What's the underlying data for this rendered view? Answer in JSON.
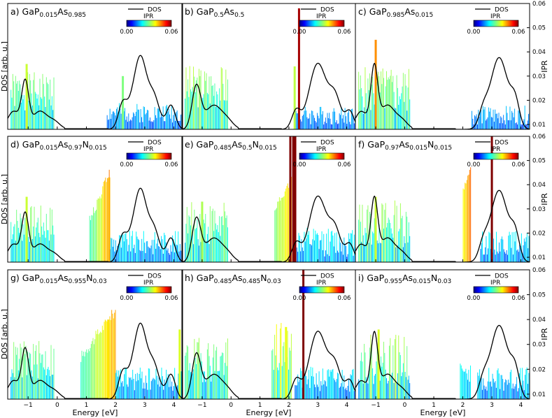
{
  "figure": {
    "ylabel_left": "DOS [arb. u.]",
    "ylabel_right": "IPR",
    "xlabel": "Energy [eV]",
    "legend_dos": "DOS",
    "legend_ipr": "IPR",
    "colorbar_min": "0.00",
    "colorbar_max": "0.06",
    "x_ticks": [
      "−1",
      "0",
      "1",
      "2",
      "3",
      "4"
    ],
    "ipr_ticks": [
      "0.01",
      "0.02",
      "0.03",
      "0.04",
      "0.05",
      "0.06"
    ]
  },
  "chart_data": [
    {
      "type": "bar",
      "panel": "a)",
      "title_base": "GaP",
      "composition": [
        {
          "sub": "0.015",
          "el": "As"
        },
        {
          "sub": "0.985",
          "el": ""
        }
      ],
      "x_range": [
        -1.7,
        4.3
      ],
      "ipr_range": [
        0.008,
        0.06
      ],
      "dos_peaks": [
        [
          -1.1,
          0.38,
          0.12
        ],
        [
          -1.5,
          0.15,
          0.2
        ],
        [
          -0.6,
          0.15,
          0.25
        ],
        [
          -0.1,
          0.06,
          0.2
        ],
        [
          2.25,
          0.22,
          0.15
        ],
        [
          2.85,
          0.58,
          0.2
        ],
        [
          3.3,
          0.28,
          0.2
        ],
        [
          3.9,
          0.2,
          0.15
        ],
        [
          2.55,
          0.12,
          0.15
        ]
      ],
      "bands": [
        {
          "from": -1.6,
          "to": -0.1,
          "base": 0.022,
          "amp": 0.008,
          "seed": 1
        },
        {
          "from": 1.7,
          "to": 4.3,
          "base": 0.014,
          "amp": 0.004,
          "seed": 2
        }
      ],
      "special": [
        [
          -1.05,
          0.035
        ],
        [
          2.25,
          0.03
        ]
      ]
    },
    {
      "type": "bar",
      "panel": "b)",
      "title_base": "GaP",
      "composition": [
        {
          "sub": "0.5",
          "el": "As"
        },
        {
          "sub": "0.5",
          "el": ""
        }
      ],
      "x_range": [
        -1.7,
        4.3
      ],
      "ipr_range": [
        0.008,
        0.06
      ],
      "dos_peaks": [
        [
          -1.2,
          0.35,
          0.15
        ],
        [
          -0.6,
          0.2,
          0.3
        ],
        [
          -0.1,
          0.05,
          0.2
        ],
        [
          2.25,
          0.15,
          0.15
        ],
        [
          3.0,
          0.55,
          0.3
        ],
        [
          3.6,
          0.25,
          0.2
        ],
        [
          4.1,
          0.15,
          0.15
        ]
      ],
      "bands": [
        {
          "from": -1.6,
          "to": -0.1,
          "base": 0.024,
          "amp": 0.009,
          "seed": 3
        },
        {
          "from": 2.2,
          "to": 4.3,
          "base": 0.013,
          "amp": 0.004,
          "seed": 4
        }
      ],
      "special": [
        [
          2.35,
          0.058
        ],
        [
          2.2,
          0.034
        ]
      ]
    },
    {
      "type": "bar",
      "panel": "c)",
      "title_base": "GaP",
      "composition": [
        {
          "sub": "0.985",
          "el": "As"
        },
        {
          "sub": "0.015",
          "el": ""
        }
      ],
      "x_range": [
        -1.7,
        4.3
      ],
      "ipr_range": [
        0.008,
        0.06
      ],
      "dos_peaks": [
        [
          -1.05,
          0.5,
          0.12
        ],
        [
          -1.5,
          0.15,
          0.2
        ],
        [
          -0.6,
          0.2,
          0.25
        ],
        [
          -0.1,
          0.07,
          0.2
        ],
        [
          3.25,
          0.6,
          0.3
        ],
        [
          3.8,
          0.2,
          0.15
        ],
        [
          2.7,
          0.12,
          0.15
        ]
      ],
      "bands": [
        {
          "from": -1.6,
          "to": 0.2,
          "base": 0.022,
          "amp": 0.01,
          "seed": 5
        },
        {
          "from": 2.3,
          "to": 4.3,
          "base": 0.013,
          "amp": 0.004,
          "seed": 6
        }
      ],
      "special": [
        [
          -1.0,
          0.045
        ]
      ]
    },
    {
      "type": "bar",
      "panel": "d)",
      "title_base": "GaP",
      "composition": [
        {
          "sub": "0.015",
          "el": "As"
        },
        {
          "sub": "0.97",
          "el": "N"
        },
        {
          "sub": "0.015",
          "el": ""
        }
      ],
      "x_range": [
        -1.7,
        4.3
      ],
      "ipr_range": [
        0.008,
        0.06
      ],
      "dos_peaks": [
        [
          -1.1,
          0.38,
          0.12
        ],
        [
          -1.5,
          0.15,
          0.2
        ],
        [
          -0.6,
          0.15,
          0.25
        ],
        [
          -0.1,
          0.06,
          0.2
        ],
        [
          2.25,
          0.22,
          0.15
        ],
        [
          2.85,
          0.58,
          0.2
        ],
        [
          3.3,
          0.28,
          0.2
        ],
        [
          3.9,
          0.2,
          0.15
        ],
        [
          2.55,
          0.12,
          0.15
        ]
      ],
      "bands": [
        {
          "from": -1.6,
          "to": -0.1,
          "base": 0.022,
          "amp": 0.008,
          "seed": 7
        },
        {
          "from": 1.1,
          "to": 1.8,
          "base": 0.025,
          "amp": 0.013,
          "seed": 8,
          "ramp": true
        },
        {
          "from": 1.8,
          "to": 4.3,
          "base": 0.015,
          "amp": 0.005,
          "seed": 9
        }
      ],
      "special": [
        [
          1.78,
          0.043
        ],
        [
          -1.05,
          0.035
        ]
      ]
    },
    {
      "type": "bar",
      "panel": "e)",
      "title_base": "GaP",
      "composition": [
        {
          "sub": "0.485",
          "el": "As"
        },
        {
          "sub": "0.5",
          "el": "N"
        },
        {
          "sub": "0.015",
          "el": ""
        }
      ],
      "x_range": [
        -1.7,
        4.3
      ],
      "ipr_range": [
        0.008,
        0.06
      ],
      "dos_peaks": [
        [
          -1.2,
          0.35,
          0.15
        ],
        [
          -0.6,
          0.2,
          0.3
        ],
        [
          -0.1,
          0.05,
          0.2
        ],
        [
          2.25,
          0.15,
          0.15
        ],
        [
          3.0,
          0.55,
          0.3
        ],
        [
          3.6,
          0.25,
          0.2
        ],
        [
          4.1,
          0.15,
          0.15
        ]
      ],
      "bands": [
        {
          "from": -1.6,
          "to": -0.1,
          "base": 0.022,
          "amp": 0.009,
          "seed": 10
        },
        {
          "from": 1.5,
          "to": 2.1,
          "base": 0.03,
          "amp": 0.008,
          "seed": 11,
          "ramp": true
        },
        {
          "from": 2.2,
          "to": 4.3,
          "base": 0.015,
          "amp": 0.006,
          "seed": 12
        }
      ],
      "special": [
        [
          2.05,
          0.06
        ],
        [
          2.15,
          0.06
        ],
        [
          2.22,
          0.06
        ],
        [
          -1.0,
          0.033
        ]
      ]
    },
    {
      "type": "bar",
      "panel": "f)",
      "title_base": "GaP",
      "composition": [
        {
          "sub": "0.97",
          "el": "As"
        },
        {
          "sub": "0.015",
          "el": "N"
        },
        {
          "sub": "0.015",
          "el": ""
        }
      ],
      "x_range": [
        -1.7,
        4.3
      ],
      "ipr_range": [
        0.008,
        0.06
      ],
      "dos_peaks": [
        [
          -1.05,
          0.5,
          0.12
        ],
        [
          -1.5,
          0.15,
          0.2
        ],
        [
          -0.6,
          0.2,
          0.25
        ],
        [
          -0.1,
          0.07,
          0.2
        ],
        [
          3.25,
          0.6,
          0.3
        ],
        [
          3.8,
          0.2,
          0.15
        ],
        [
          2.7,
          0.12,
          0.15
        ]
      ],
      "bands": [
        {
          "from": -1.6,
          "to": 0.2,
          "base": 0.022,
          "amp": 0.01,
          "seed": 13
        },
        {
          "from": 2.0,
          "to": 2.3,
          "base": 0.038,
          "amp": 0.006,
          "seed": 14,
          "ramp": true
        },
        {
          "from": 2.6,
          "to": 4.3,
          "base": 0.015,
          "amp": 0.005,
          "seed": 15
        }
      ],
      "special": [
        [
          3.0,
          0.06
        ],
        [
          -1.0,
          0.035
        ]
      ]
    },
    {
      "type": "bar",
      "panel": "g)",
      "title_base": "GaP",
      "composition": [
        {
          "sub": "0.015",
          "el": "As"
        },
        {
          "sub": "0.955",
          "el": "N"
        },
        {
          "sub": "0.03",
          "el": ""
        }
      ],
      "x_range": [
        -1.7,
        4.3
      ],
      "ipr_range": [
        0.008,
        0.06
      ],
      "dos_peaks": [
        [
          -1.1,
          0.38,
          0.12
        ],
        [
          -1.5,
          0.15,
          0.2
        ],
        [
          -0.6,
          0.15,
          0.25
        ],
        [
          -0.1,
          0.06,
          0.2
        ],
        [
          2.25,
          0.22,
          0.15
        ],
        [
          2.85,
          0.58,
          0.2
        ],
        [
          3.3,
          0.28,
          0.2
        ],
        [
          3.9,
          0.2,
          0.15
        ],
        [
          2.55,
          0.12,
          0.15
        ]
      ],
      "bands": [
        {
          "from": -1.6,
          "to": -0.1,
          "base": 0.022,
          "amp": 0.008,
          "seed": 16
        },
        {
          "from": 0.8,
          "to": 2.0,
          "base": 0.025,
          "amp": 0.012,
          "seed": 17,
          "ramp": true
        },
        {
          "from": 2.0,
          "to": 4.3,
          "base": 0.015,
          "amp": 0.005,
          "seed": 18
        }
      ],
      "special": [
        [
          1.75,
          0.04
        ],
        [
          4.2,
          0.036
        ]
      ]
    },
    {
      "type": "bar",
      "panel": "h)",
      "title_base": "GaP",
      "composition": [
        {
          "sub": "0.485",
          "el": "As"
        },
        {
          "sub": "0.485",
          "el": "N"
        },
        {
          "sub": "0.03",
          "el": ""
        }
      ],
      "x_range": [
        -1.7,
        4.3
      ],
      "ipr_range": [
        0.008,
        0.06
      ],
      "dos_peaks": [
        [
          -1.2,
          0.35,
          0.15
        ],
        [
          -0.6,
          0.2,
          0.3
        ],
        [
          -0.1,
          0.05,
          0.2
        ],
        [
          2.25,
          0.15,
          0.15
        ],
        [
          3.0,
          0.55,
          0.3
        ],
        [
          3.6,
          0.25,
          0.2
        ],
        [
          4.1,
          0.15,
          0.15
        ]
      ],
      "bands": [
        {
          "from": -1.6,
          "to": -0.1,
          "base": 0.022,
          "amp": 0.009,
          "seed": 19
        },
        {
          "from": 1.4,
          "to": 2.1,
          "base": 0.027,
          "amp": 0.01,
          "seed": 20
        },
        {
          "from": 2.2,
          "to": 4.3,
          "base": 0.015,
          "amp": 0.005,
          "seed": 21
        }
      ],
      "special": [
        [
          2.5,
          0.06
        ],
        [
          1.9,
          0.037
        ]
      ]
    },
    {
      "type": "bar",
      "panel": "i)",
      "title_base": "GaP",
      "composition": [
        {
          "sub": "0.955",
          "el": "As"
        },
        {
          "sub": "0.015",
          "el": "N"
        },
        {
          "sub": "0.03",
          "el": ""
        }
      ],
      "x_range": [
        -1.7,
        4.3
      ],
      "ipr_range": [
        0.008,
        0.06
      ],
      "dos_peaks": [
        [
          -1.05,
          0.5,
          0.12
        ],
        [
          -1.5,
          0.15,
          0.2
        ],
        [
          -0.6,
          0.2,
          0.25
        ],
        [
          -0.1,
          0.07,
          0.2
        ],
        [
          3.25,
          0.6,
          0.3
        ],
        [
          3.8,
          0.2,
          0.15
        ],
        [
          2.7,
          0.12,
          0.15
        ]
      ],
      "bands": [
        {
          "from": -1.6,
          "to": 0.2,
          "base": 0.022,
          "amp": 0.01,
          "seed": 22
        },
        {
          "from": 1.9,
          "to": 2.3,
          "base": 0.018,
          "amp": 0.004,
          "seed": 23
        },
        {
          "from": 2.5,
          "to": 4.3,
          "base": 0.015,
          "amp": 0.005,
          "seed": 24
        }
      ],
      "special": [
        [
          -0.9,
          0.036
        ]
      ]
    }
  ]
}
